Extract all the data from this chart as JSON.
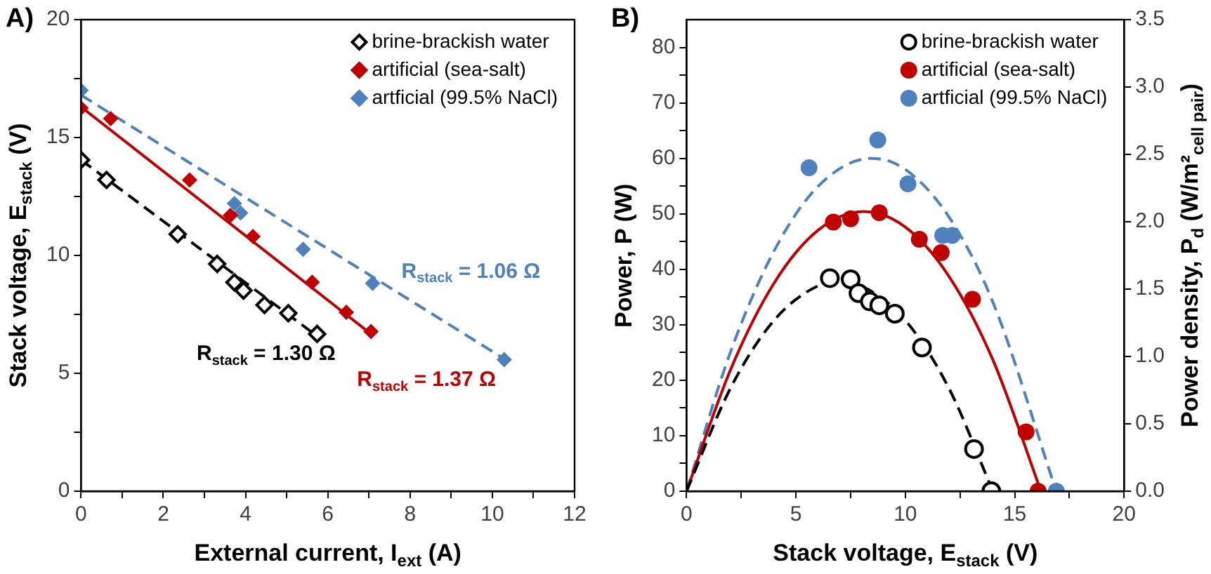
{
  "chart_data": [
    {
      "type": "scatter",
      "title": "A)",
      "xlabel": "External current, I$_{ext}$ (A)",
      "ylabel": "Stack voltage, E$_{stack}$ (V)",
      "xlim": [
        0,
        12
      ],
      "xticks": [
        0,
        {
          "value": 1,
          "label": null
        },
        2,
        {
          "value": 3,
          "label": null
        },
        4,
        {
          "value": 5,
          "label": null
        },
        6,
        {
          "value": 7,
          "label": null
        },
        8,
        {
          "value": 9,
          "label": null
        },
        10,
        {
          "value": 11,
          "label": null
        },
        12
      ],
      "ylim": [
        0,
        20
      ],
      "yticks": [
        0,
        {
          "value": 2.5,
          "label": null
        },
        5,
        {
          "value": 7.5,
          "label": null
        },
        10,
        {
          "value": 12.5,
          "label": null
        },
        15,
        {
          "value": 17.5,
          "label": null
        },
        20
      ],
      "legend": "top right",
      "marker": "diamond",
      "series": [
        {
          "name": "brine-brackish water",
          "color": "#000000",
          "x": [
            0,
            0.62,
            2.35,
            3.31,
            3.73,
            3.95,
            4.46,
            5.04,
            5.74
          ],
          "values": [
            14.05,
            13.2,
            10.9,
            9.64,
            8.86,
            8.51,
            7.9,
            7.55,
            6.67
          ]
        },
        {
          "name": "artificial (sea-salt)",
          "color": "#c00000",
          "x": [
            0,
            0.72,
            2.64,
            3.63,
            4.18,
            5.62,
            6.45,
            7.05
          ],
          "values": [
            16.25,
            15.8,
            13.2,
            11.7,
            10.8,
            8.86,
            7.59,
            6.77
          ]
        },
        {
          "name": "artficial (99.5% NaCl)",
          "color": "#4f81bd",
          "x": [
            0,
            3.73,
            3.88,
            5.4,
            7.09,
            10.29
          ],
          "values": [
            17.0,
            12.2,
            11.8,
            10.26,
            8.82,
            5.58
          ]
        },
        {
          "type": "line",
          "color": "#000000",
          "line_style": "dashed",
          "marker": "none",
          "x": [
            0,
            5.8
          ],
          "values": [
            14.05,
            6.5
          ]
        },
        {
          "type": "line",
          "color": "#c00000",
          "line_style": "solid",
          "marker": "none",
          "x": [
            0,
            7.1
          ],
          "values": [
            16.3,
            6.6
          ]
        },
        {
          "type": "line",
          "color": "#4f81bd",
          "line_style": "dashed",
          "marker": "none",
          "x": [
            0,
            10.3
          ],
          "values": [
            16.8,
            5.6
          ]
        }
      ],
      "annotations": [
        "R$_{stack}$ = 1.30 Ω",
        "R$_{stack}$ = 1.37 Ω",
        "R$_{stack}$ = 1.06 Ω"
      ]
    },
    {
      "type": "scatter",
      "title": "B)",
      "xlabel": "Stack voltage, E$_{stack}$ (V)",
      "ylabel": "Power, P (W)",
      "y2label": "Power density, P$_{d}$ (W/m²$_{cell pair}$)",
      "xlim": [
        0,
        20
      ],
      "xticks": [
        0,
        {
          "value": 2.5,
          "label": null
        },
        5,
        {
          "value": 7.5,
          "label": null
        },
        10,
        {
          "value": 12.5,
          "label": null
        },
        15,
        {
          "value": 17.5,
          "label": null
        },
        20
      ],
      "ylim": [
        0,
        85
      ],
      "yticks": [
        0,
        {
          "value": 5,
          "label": null
        },
        10,
        {
          "value": 15,
          "label": null
        },
        20,
        {
          "value": 25,
          "label": null
        },
        30,
        {
          "value": 35,
          "label": null
        },
        40,
        {
          "value": 45,
          "label": null
        },
        50,
        {
          "value": 55,
          "label": null
        },
        60,
        {
          "value": 65,
          "label": null
        },
        70,
        {
          "value": 75,
          "label": null
        },
        80
      ],
      "y2lim": [
        0,
        3.5
      ],
      "y2ticks": [
        {
          "value": 0,
          "label": "0.0"
        },
        0.5,
        {
          "value": 1,
          "label": "1.0"
        },
        1.5,
        {
          "value": 2,
          "label": "2.0"
        },
        2.5,
        {
          "value": 3,
          "label": "3.0"
        },
        3.5
      ],
      "legend": "top right",
      "marker": "circle",
      "series": [
        {
          "name": "brine-brackish water",
          "color": "#000000",
          "x": [
            6.55,
            7.5,
            7.86,
            8.38,
            8.81,
            9.52,
            10.76,
            13.14,
            13.93
          ],
          "values": [
            38.4,
            38.2,
            35.7,
            34.2,
            33.5,
            32.0,
            25.9,
            7.6,
            0
          ]
        },
        {
          "name": "artificial (sea-salt)",
          "color": "#c00000",
          "x": [
            6.71,
            7.5,
            8.81,
            10.64,
            11.64,
            13.07,
            15.52,
            16.07
          ],
          "values": [
            48.5,
            49.1,
            50.2,
            45.4,
            43.0,
            34.6,
            10.7,
            0
          ]
        },
        {
          "name": "artficial (99.5% NaCl)",
          "color": "#4f81bd",
          "x": [
            5.6,
            8.74,
            10.12,
            11.71,
            12.14,
            16.9
          ],
          "values": [
            58.3,
            63.3,
            55.4,
            46.1,
            46.1,
            0
          ]
        },
        {
          "type": "line",
          "color": "#000000",
          "line_style": "dashed",
          "marker": "none",
          "x": [
            0,
            2,
            4,
            6,
            7,
            8,
            10,
            12,
            14
          ],
          "values": [
            0,
            18.5,
            30.8,
            37,
            37.7,
            37,
            30.8,
            18.5,
            0
          ]
        },
        {
          "type": "line",
          "color": "#c00000",
          "line_style": "solid",
          "marker": "none",
          "x": [
            0,
            2,
            4,
            6,
            8.1,
            10,
            12,
            14,
            16.2
          ],
          "values": [
            0,
            21.8,
            37.5,
            47,
            50.4,
            47.6,
            38.7,
            23.7,
            0
          ]
        },
        {
          "type": "line",
          "color": "#4f81bd",
          "line_style": "dashed",
          "marker": "none",
          "x": [
            0,
            2,
            4,
            6,
            8.45,
            10,
            12,
            14,
            16.9
          ],
          "values": [
            0,
            25,
            43.3,
            54.9,
            60,
            58,
            49.4,
            34.1,
            0
          ]
        }
      ]
    }
  ]
}
